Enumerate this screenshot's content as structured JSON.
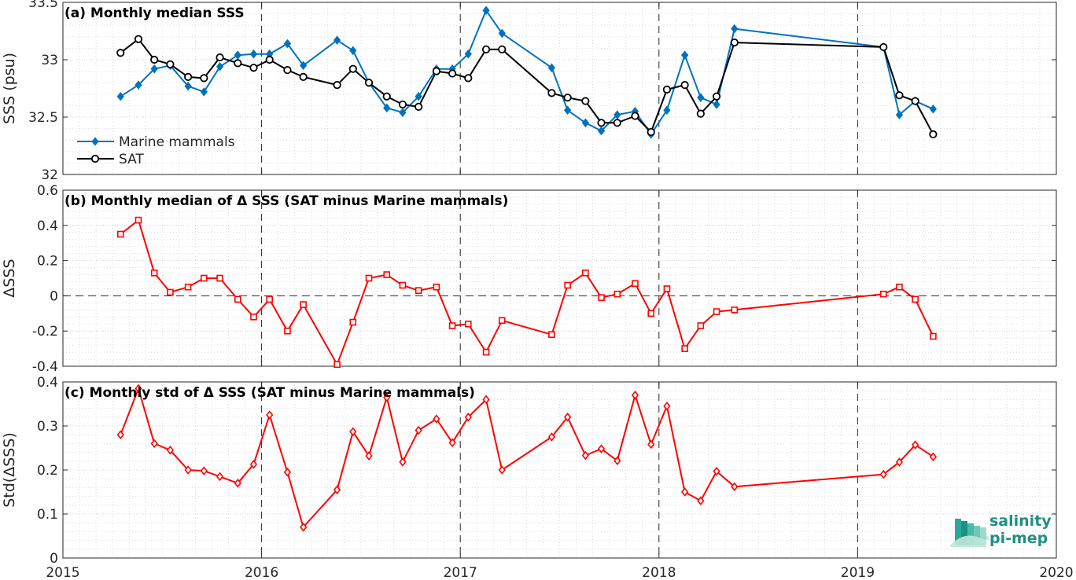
{
  "chart_data": [
    {
      "type": "line",
      "title": "(a) Monthly median SSS",
      "xlabel": "",
      "ylabel": "SSS (psu)",
      "xlim": [
        2015,
        2020
      ],
      "ylim": [
        32,
        33.5
      ],
      "yticks": [
        "32",
        "32.5",
        "33",
        "33.5"
      ],
      "xticks": [
        "2015",
        "2016",
        "2017",
        "2018",
        "2019",
        "2020"
      ],
      "grid": true,
      "legend": "bottom-left",
      "series": [
        {
          "name": "Marine mammals",
          "color": "#0072BD",
          "marker": "diamond",
          "x": [
            2015.29,
            2015.38,
            2015.46,
            2015.54,
            2015.63,
            2015.71,
            2015.79,
            2015.88,
            2015.96,
            2016.04,
            2016.13,
            2016.21,
            2016.38,
            2016.46,
            2016.54,
            2016.63,
            2016.71,
            2016.79,
            2016.88,
            2016.96,
            2017.04,
            2017.13,
            2017.21,
            2017.46,
            2017.54,
            2017.63,
            2017.71,
            2017.79,
            2017.88,
            2017.96,
            2018.04,
            2018.13,
            2018.21,
            2018.29,
            2018.38,
            2019.13,
            2019.21,
            2019.29,
            2019.38
          ],
          "y": [
            32.68,
            32.78,
            32.92,
            32.95,
            32.77,
            32.72,
            32.94,
            33.04,
            33.05,
            33.05,
            33.14,
            32.95,
            33.17,
            33.08,
            32.8,
            32.58,
            32.54,
            32.68,
            32.92,
            32.92,
            33.05,
            33.43,
            33.23,
            32.93,
            32.56,
            32.45,
            32.38,
            32.52,
            32.55,
            32.35,
            32.56,
            33.04,
            32.67,
            32.61,
            33.27,
            33.11,
            32.52,
            32.64,
            32.57
          ]
        },
        {
          "name": "SAT",
          "color": "#000000",
          "marker": "circle",
          "x": [
            2015.29,
            2015.38,
            2015.46,
            2015.54,
            2015.63,
            2015.71,
            2015.79,
            2015.88,
            2015.96,
            2016.04,
            2016.13,
            2016.21,
            2016.38,
            2016.46,
            2016.54,
            2016.63,
            2016.71,
            2016.79,
            2016.88,
            2016.96,
            2017.04,
            2017.13,
            2017.21,
            2017.46,
            2017.54,
            2017.63,
            2017.71,
            2017.79,
            2017.88,
            2017.96,
            2018.04,
            2018.13,
            2018.21,
            2018.29,
            2018.38,
            2019.13,
            2019.21,
            2019.29,
            2019.38
          ],
          "y": [
            33.06,
            33.18,
            33.0,
            32.96,
            32.85,
            32.84,
            33.02,
            32.97,
            32.93,
            33.0,
            32.91,
            32.85,
            32.78,
            32.92,
            32.8,
            32.68,
            32.61,
            32.59,
            32.9,
            32.88,
            32.84,
            33.09,
            33.09,
            32.71,
            32.67,
            32.64,
            32.45,
            32.45,
            32.51,
            32.37,
            32.74,
            32.78,
            32.53,
            32.68,
            33.15,
            33.11,
            32.69,
            32.64,
            32.35
          ]
        }
      ]
    },
    {
      "type": "line",
      "title": "(b) Monthly median of Δ SSS (SAT minus Marine mammals)",
      "xlabel": "",
      "ylabel": "ΔSSS",
      "xlim": [
        2015,
        2020
      ],
      "ylim": [
        -0.4,
        0.6
      ],
      "yticks": [
        "-0.4",
        "-0.2",
        "0",
        "0.2",
        "0.4",
        "0.6"
      ],
      "grid": true,
      "reference_line": 0,
      "series": [
        {
          "color": "#FF0000",
          "marker": "square",
          "x": [
            2015.29,
            2015.38,
            2015.46,
            2015.54,
            2015.63,
            2015.71,
            2015.79,
            2015.88,
            2015.96,
            2016.04,
            2016.13,
            2016.21,
            2016.38,
            2016.46,
            2016.54,
            2016.63,
            2016.71,
            2016.79,
            2016.88,
            2016.96,
            2017.04,
            2017.13,
            2017.21,
            2017.46,
            2017.54,
            2017.63,
            2017.71,
            2017.79,
            2017.88,
            2017.96,
            2018.04,
            2018.13,
            2018.21,
            2018.29,
            2018.38,
            2019.13,
            2019.21,
            2019.29,
            2019.38
          ],
          "y": [
            0.35,
            0.43,
            0.13,
            0.02,
            0.05,
            0.1,
            0.1,
            -0.02,
            -0.12,
            -0.02,
            -0.2,
            -0.05,
            -0.39,
            -0.15,
            0.1,
            0.12,
            0.06,
            0.03,
            0.05,
            -0.17,
            -0.16,
            -0.32,
            -0.14,
            -0.22,
            0.06,
            0.13,
            -0.01,
            0.01,
            0.07,
            -0.1,
            0.04,
            -0.3,
            -0.17,
            -0.09,
            -0.08,
            0.01,
            0.05,
            -0.02,
            -0.23
          ]
        }
      ]
    },
    {
      "type": "line",
      "title": "(c) Monthly std of Δ SSS (SAT minus Marine mammals)",
      "xlabel": "",
      "ylabel": "Std(ΔSSS)",
      "xlim": [
        2015,
        2020
      ],
      "ylim": [
        0,
        0.4
      ],
      "yticks": [
        "0",
        "0.1",
        "0.2",
        "0.3",
        "0.4"
      ],
      "grid": true,
      "series": [
        {
          "color": "#FF0000",
          "marker": "diamond",
          "x": [
            2015.29,
            2015.38,
            2015.46,
            2015.54,
            2015.63,
            2015.71,
            2015.79,
            2015.88,
            2015.96,
            2016.04,
            2016.13,
            2016.21,
            2016.38,
            2016.46,
            2016.54,
            2016.63,
            2016.71,
            2016.79,
            2016.88,
            2016.96,
            2017.04,
            2017.13,
            2017.21,
            2017.46,
            2017.54,
            2017.63,
            2017.71,
            2017.79,
            2017.88,
            2017.96,
            2018.04,
            2018.13,
            2018.21,
            2018.29,
            2018.38,
            2019.13,
            2019.21,
            2019.29,
            2019.38
          ],
          "y": [
            0.28,
            0.385,
            0.26,
            0.245,
            0.2,
            0.198,
            0.185,
            0.17,
            0.213,
            0.325,
            0.195,
            0.07,
            0.155,
            0.287,
            0.232,
            0.365,
            0.218,
            0.29,
            0.316,
            0.262,
            0.32,
            0.36,
            0.2,
            0.275,
            0.32,
            0.233,
            0.248,
            0.221,
            0.37,
            0.258,
            0.345,
            0.15,
            0.13,
            0.197,
            0.162,
            0.19,
            0.218,
            0.257,
            0.23
          ]
        }
      ]
    }
  ],
  "logo": {
    "line1": "salinity",
    "line2": "pi-mep"
  }
}
